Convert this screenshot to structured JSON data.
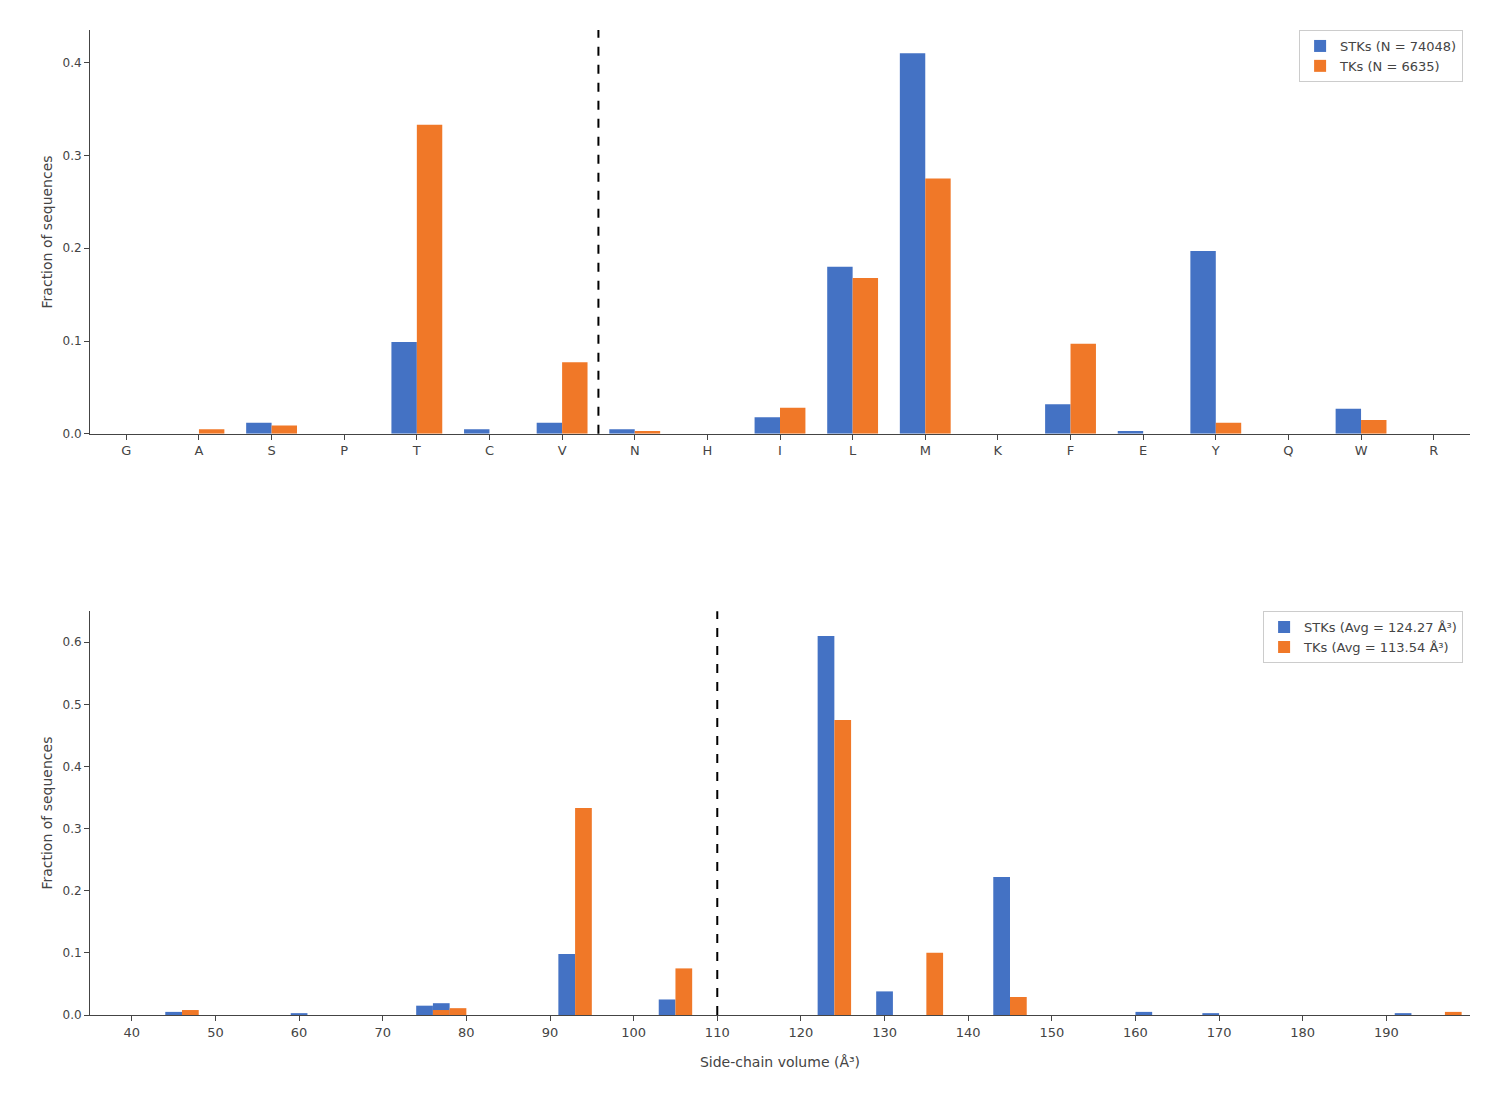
{
  "chart_data": [
    {
      "type": "bar",
      "categories": [
        "G",
        "A",
        "S",
        "P",
        "T",
        "C",
        "V",
        "N",
        "H",
        "I",
        "L",
        "M",
        "K",
        "F",
        "E",
        "Y",
        "Q",
        "W",
        "R"
      ],
      "series": [
        {
          "name": "STKs (N = 74048)",
          "color": "#4472c4",
          "values": [
            0.0,
            0.0,
            0.012,
            0.0,
            0.099,
            0.005,
            0.012,
            0.005,
            0.0,
            0.018,
            0.18,
            0.41,
            0.0,
            0.032,
            0.003,
            0.197,
            0.0,
            0.027,
            0.0
          ]
        },
        {
          "name": "TKs (N = 6635)",
          "color": "#f07828",
          "values": [
            0.0,
            0.005,
            0.009,
            0.0,
            0.333,
            0.0,
            0.077,
            0.003,
            0.0,
            0.028,
            0.168,
            0.275,
            0.0,
            0.097,
            0.0,
            0.012,
            0.0,
            0.015,
            0.0
          ]
        }
      ],
      "ylabel": "Fraction of sequences",
      "ylim": [
        0,
        0.435
      ],
      "yticks": [
        {
          "value": 0.0,
          "label": "0.0"
        },
        0.1,
        0.2,
        0.3,
        0.4
      ],
      "reference_lines": [
        {
          "x": 6.5,
          "line_style": "dashed",
          "color": "#000000"
        }
      ],
      "legend": "upper right",
      "grid": false
    },
    {
      "type": "bar",
      "series": [
        {
          "name": "STKs (Avg = 124.27 Å³)",
          "color": "#4472c4",
          "x": [
            46,
            61,
            76,
            78,
            93,
            105,
            124,
            131,
            145,
            162,
            170,
            193
          ],
          "values": [
            0.005,
            0.002,
            0.015,
            0.019,
            0.098,
            0.025,
            0.61,
            0.038,
            0.222,
            0.005,
            0.002,
            0.003
          ]
        },
        {
          "name": "TKs (Avg = 113.54 Å³)",
          "color": "#f07828",
          "x": [
            46,
            76,
            78,
            93,
            105,
            124,
            135,
            145,
            197
          ],
          "values": [
            0.008,
            0.008,
            0.011,
            0.333,
            0.075,
            0.475,
            0.1,
            0.029,
            0.005
          ]
        }
      ],
      "xlabel": "Side-chain volume (Å³)",
      "ylabel": "Fraction of sequences",
      "xlim": [
        35,
        200
      ],
      "xticks": [
        40,
        50,
        60,
        70,
        80,
        90,
        100,
        110,
        120,
        130,
        140,
        150,
        160,
        170,
        180,
        190
      ],
      "ylim": [
        0,
        0.65
      ],
      "yticks": [
        {
          "value": 0.0,
          "label": "0.0"
        },
        0.1,
        0.2,
        0.3,
        0.4,
        0.5,
        0.6
      ],
      "reference_lines": [
        {
          "x": 110,
          "line_style": "dashed",
          "color": "#000000"
        }
      ],
      "legend": "upper right",
      "grid": false
    }
  ]
}
